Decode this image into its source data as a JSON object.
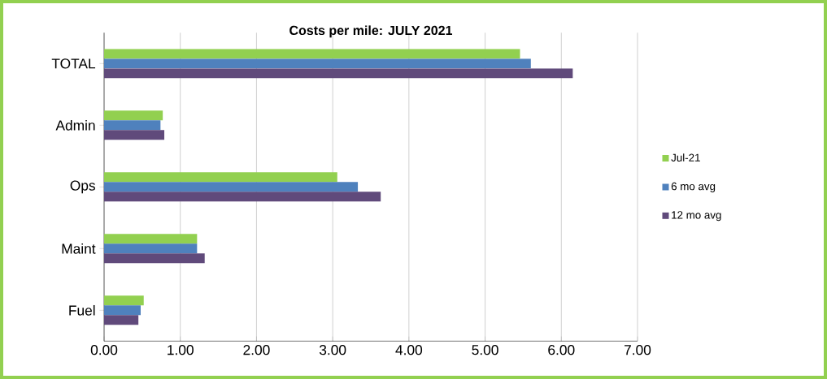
{
  "chart_data": {
    "type": "bar",
    "orientation": "horizontal",
    "title": "Costs per mile: JULY 2021",
    "categories": [
      "TOTAL",
      "Admin",
      "Ops",
      "Maint",
      "Fuel"
    ],
    "series": [
      {
        "name": "Jul-21",
        "color": "#92d050",
        "values": [
          5.46,
          0.77,
          3.06,
          1.22,
          0.52
        ]
      },
      {
        "name": "6 mo avg",
        "color": "#4f81bd",
        "values": [
          5.6,
          0.74,
          3.33,
          1.22,
          0.48
        ]
      },
      {
        "name": "12 mo avg",
        "color": "#604a7b",
        "values": [
          6.15,
          0.79,
          3.63,
          1.32,
          0.45
        ]
      }
    ],
    "xlim": [
      0,
      7
    ],
    "xticks": [
      {
        "value": 0,
        "label": "0.00"
      },
      {
        "value": 1,
        "label": "1.00"
      },
      {
        "value": 2,
        "label": "2.00"
      },
      {
        "value": 3,
        "label": "3.00"
      },
      {
        "value": 4,
        "label": "4.00"
      },
      {
        "value": 5,
        "label": "5.00"
      },
      {
        "value": 6,
        "label": "6.00"
      },
      {
        "value": 7,
        "label": "7.00"
      }
    ],
    "grid": "x",
    "legend": "right"
  }
}
